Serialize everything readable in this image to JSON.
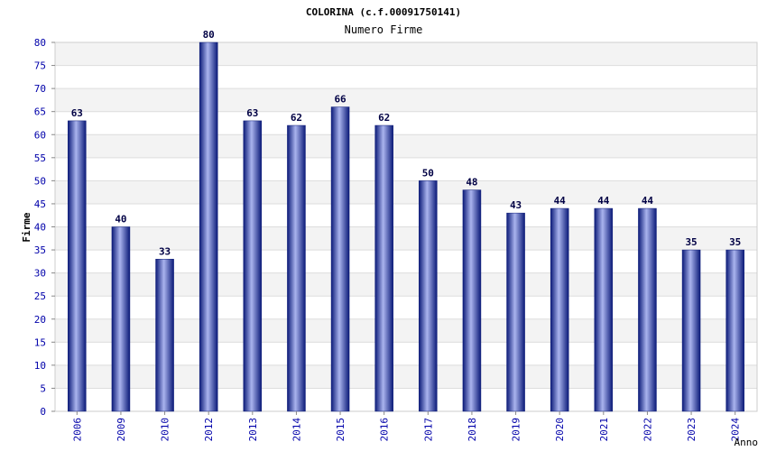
{
  "chart_data": {
    "type": "bar",
    "title": "COLORINA (c.f.00091750141)",
    "subtitle": "Numero Firme",
    "xlabel": "Anno",
    "ylabel": "Firme",
    "ylim": [
      0,
      80
    ],
    "ytick_step": 5,
    "grid": true,
    "categories": [
      "2006",
      "2009",
      "2010",
      "2012",
      "2013",
      "2014",
      "2015",
      "2016",
      "2017",
      "2018",
      "2019",
      "2020",
      "2021",
      "2022",
      "2023",
      "2024"
    ],
    "values": [
      63,
      40,
      33,
      80,
      63,
      62,
      66,
      62,
      50,
      48,
      43,
      44,
      44,
      44,
      35,
      35
    ],
    "bar_color": "#1a2a8a",
    "tick_color": "#0000aa"
  }
}
